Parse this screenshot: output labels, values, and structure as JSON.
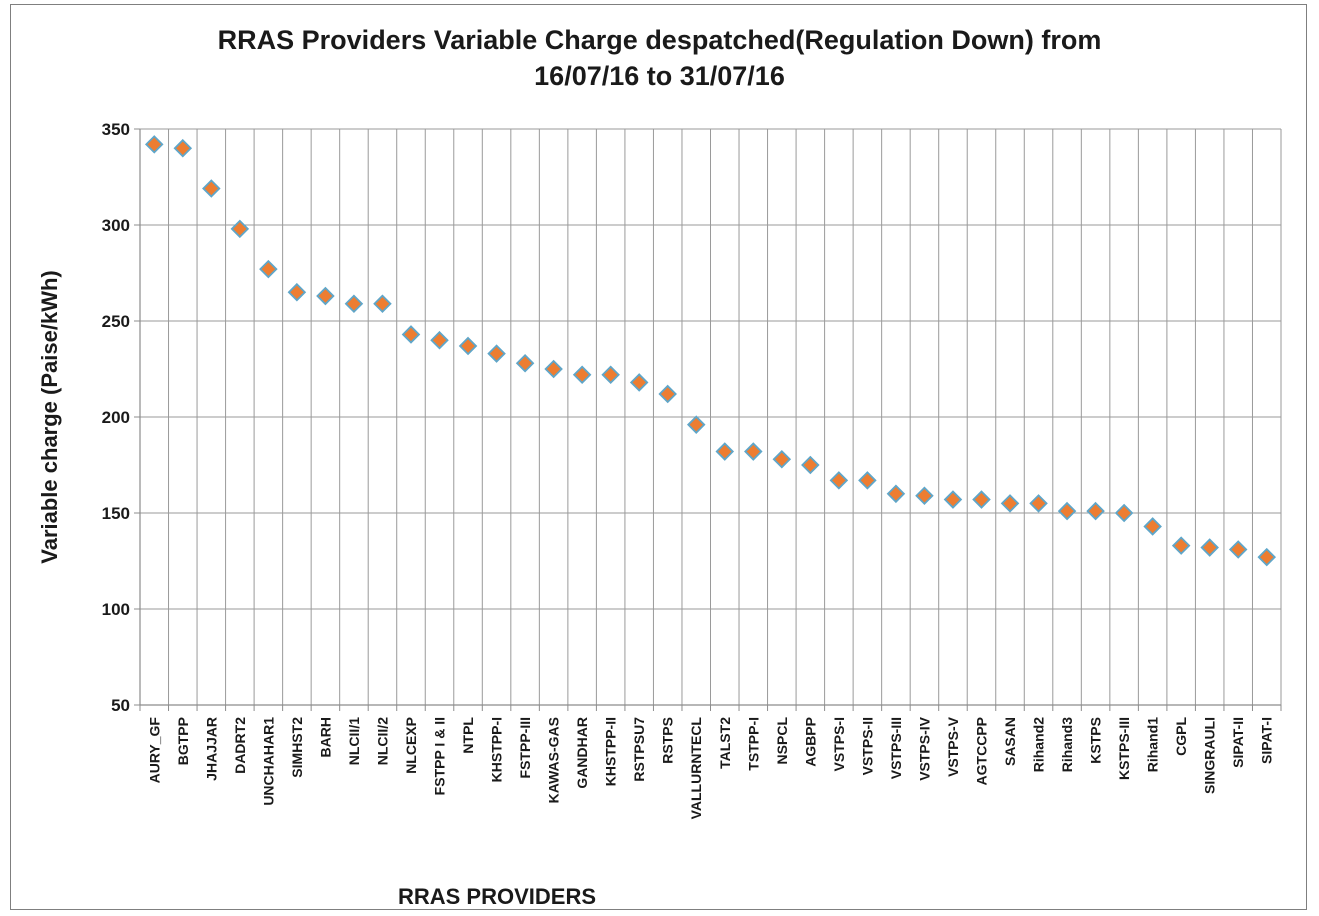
{
  "chart_data": {
    "type": "scatter",
    "title": "RRAS Providers Variable Charge despatched(Regulation Down) from 16/07/16 to 31/07/16",
    "title_lines": [
      "RRAS Providers Variable Charge despatched(Regulation Down) from",
      "16/07/16 to 31/07/16"
    ],
    "xlabel": "RRAS PROVIDERS",
    "ylabel": "Variable charge (Paise/kWh)",
    "ylim": [
      50,
      350
    ],
    "yticks": [
      50,
      100,
      150,
      200,
      250,
      300,
      350
    ],
    "grid": true,
    "marker": "diamond",
    "marker_color": "#ed7d31",
    "marker_edge_color": "#5fa6c9",
    "categories": [
      "AURY_GF",
      "BGTPP",
      "JHAJJAR",
      "DADRT2",
      "UNCHAHAR1",
      "SIMHST2",
      "BARH",
      "NLCII/1",
      "NLCII/2",
      "NLCEXP",
      "FSTPP I & II",
      "NTPL",
      "KHSTPP-I",
      "FSTPP-III",
      "KAWAS-GAS",
      "GANDHAR",
      "KHSTPP-II",
      "RSTPSU7",
      "RSTPS",
      "VALLURNTECL",
      "TALST2",
      "TSTPP-I",
      "NSPCL",
      "AGBPP",
      "VSTPS-I",
      "VSTPS-II",
      "VSTPS-III",
      "VSTPS-IV",
      "VSTPS-V",
      "AGTCCPP",
      "SASAN",
      "Rihand2",
      "Rihand3",
      "KSTPS",
      "KSTPS-III",
      "Rihand1",
      "CGPL",
      "SINGRAULI",
      "SIPAT-II",
      "SIPAT-I"
    ],
    "values": [
      342,
      340,
      319,
      298,
      277,
      265,
      263,
      259,
      259,
      243,
      240,
      237,
      233,
      228,
      225,
      222,
      222,
      218,
      212,
      196,
      182,
      182,
      178,
      175,
      167,
      167,
      160,
      159,
      157,
      157,
      155,
      155,
      151,
      151,
      150,
      143,
      133,
      132,
      131,
      127
    ]
  }
}
